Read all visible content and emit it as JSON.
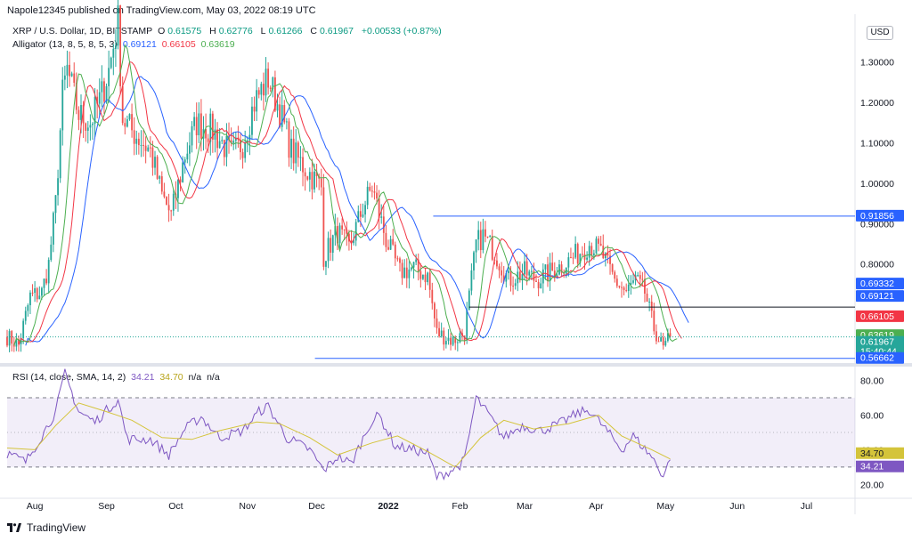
{
  "publisher_line": "Napole12345 published on TradingView.com, May 03, 2022 08:19 UTC",
  "legend": {
    "symbol": "XRP / U.S. Dollar, 1D, BITSTAMP",
    "o_label": "O",
    "o_value": "0.61575",
    "h_label": "H",
    "h_value": "0.62776",
    "l_label": "L",
    "l_value": "0.61266",
    "c_label": "C",
    "c_value": "0.61967",
    "change": "+0.00533 (+0.87%)",
    "alligator_label": "Alligator (13, 8, 5, 8, 5, 3)",
    "jaw": "0.69121",
    "teeth": "0.66105",
    "lips": "0.63619"
  },
  "rsi_legend": {
    "label": "RSI (14, close, SMA, 14, 2)",
    "rsi": "34.21",
    "sma": "34.70",
    "na1": "n/a",
    "na2": "n/a"
  },
  "currency": "USD",
  "brand": "TradingView",
  "colors": {
    "up": "#26a69a",
    "down": "#ef5350",
    "jaw": "#2962ff",
    "teeth": "#f23645",
    "lips": "#4caf50",
    "rsi": "#7e57c2",
    "rsi_ma": "#d4c43a",
    "hline": "#2962ff"
  },
  "chart_data": {
    "type": "candlestick",
    "x_ticks": [
      "Aug",
      "Sep",
      "Oct",
      "Nov",
      "Dec",
      "2022",
      "Feb",
      "Mar",
      "Apr",
      "May",
      "Jun",
      "Jul"
    ],
    "y_ticks": [
      "1.30000",
      "1.20000",
      "1.10000",
      "1.00000",
      "0.90000",
      "0.80000"
    ],
    "y_range": [
      0.555,
      1.405
    ],
    "close_path": [
      [
        "2021-07-20",
        0.62
      ],
      [
        "2021-07-25",
        0.6
      ],
      [
        "2021-07-30",
        0.72
      ],
      [
        "2021-08-04",
        0.73
      ],
      [
        "2021-08-07",
        0.8
      ],
      [
        "2021-08-10",
        0.95
      ],
      [
        "2021-08-13",
        1.22
      ],
      [
        "2021-08-15",
        1.28
      ],
      [
        "2021-08-20",
        1.17
      ],
      [
        "2021-08-25",
        1.15
      ],
      [
        "2021-08-30",
        1.22
      ],
      [
        "2021-09-02",
        1.28
      ],
      [
        "2021-09-06",
        1.4
      ],
      [
        "2021-09-08",
        1.16
      ],
      [
        "2021-09-12",
        1.13
      ],
      [
        "2021-09-20",
        1.08
      ],
      [
        "2021-09-25",
        0.97
      ],
      [
        "2021-09-29",
        0.92
      ],
      [
        "2021-10-05",
        1.07
      ],
      [
        "2021-10-10",
        1.15
      ],
      [
        "2021-10-17",
        1.13
      ],
      [
        "2021-10-25",
        1.07
      ],
      [
        "2021-10-30",
        1.1
      ],
      [
        "2021-11-04",
        1.2
      ],
      [
        "2021-11-10",
        1.26
      ],
      [
        "2021-11-15",
        1.18
      ],
      [
        "2021-11-20",
        1.08
      ],
      [
        "2021-11-27",
        1.03
      ],
      [
        "2021-12-03",
        0.99
      ],
      [
        "2021-12-04",
        0.82
      ],
      [
        "2021-12-10",
        0.88
      ],
      [
        "2021-12-15",
        0.84
      ],
      [
        "2021-12-21",
        0.94
      ],
      [
        "2021-12-25",
        0.99
      ],
      [
        "2021-12-31",
        0.86
      ],
      [
        "2022-01-06",
        0.78
      ],
      [
        "2022-01-12",
        0.79
      ],
      [
        "2022-01-18",
        0.77
      ],
      [
        "2022-01-22",
        0.63
      ],
      [
        "2022-01-29",
        0.61
      ],
      [
        "2022-02-03",
        0.63
      ],
      [
        "2022-02-08",
        0.85
      ],
      [
        "2022-02-11",
        0.87
      ],
      [
        "2022-02-16",
        0.83
      ],
      [
        "2022-02-22",
        0.76
      ],
      [
        "2022-03-01",
        0.78
      ],
      [
        "2022-03-06",
        0.76
      ],
      [
        "2022-03-12",
        0.78
      ],
      [
        "2022-03-18",
        0.8
      ],
      [
        "2022-03-25",
        0.83
      ],
      [
        "2022-03-29",
        0.85
      ],
      [
        "2022-04-03",
        0.83
      ],
      [
        "2022-04-09",
        0.76
      ],
      [
        "2022-04-14",
        0.73
      ],
      [
        "2022-04-18",
        0.76
      ],
      [
        "2022-04-22",
        0.73
      ],
      [
        "2022-04-26",
        0.64
      ],
      [
        "2022-04-30",
        0.59
      ],
      [
        "2022-05-03",
        0.61967
      ]
    ],
    "horizontal_lines": [
      0.91856,
      0.69332,
      0.56662
    ],
    "price_labels": [
      {
        "name": "resistance",
        "value": "0.91856"
      },
      {
        "name": "support-mid",
        "value": "0.69332"
      },
      {
        "name": "jaw",
        "value": "0.69121"
      },
      {
        "name": "teeth",
        "value": "0.66105"
      },
      {
        "name": "lips",
        "value": "0.63619"
      },
      {
        "name": "last",
        "value": "0.61967",
        "sub": "15:40:44"
      },
      {
        "name": "support-low",
        "value": "0.56662"
      }
    ],
    "rsi": {
      "y_ticks": [
        "80.00",
        "60.00",
        "40.00",
        "20.00"
      ],
      "y_range": [
        13,
        88
      ],
      "band": [
        70,
        30
      ],
      "mid": 50,
      "rsi_path": [
        [
          "2021-07-20",
          38
        ],
        [
          "2021-07-28",
          33
        ],
        [
          "2021-08-04",
          48
        ],
        [
          "2021-08-10",
          62
        ],
        [
          "2021-08-14",
          84
        ],
        [
          "2021-08-20",
          62
        ],
        [
          "2021-08-27",
          56
        ],
        [
          "2021-09-02",
          64
        ],
        [
          "2021-09-06",
          69
        ],
        [
          "2021-09-10",
          46
        ],
        [
          "2021-09-20",
          46
        ],
        [
          "2021-09-28",
          37
        ],
        [
          "2021-10-05",
          52
        ],
        [
          "2021-10-12",
          59
        ],
        [
          "2021-10-20",
          47
        ],
        [
          "2021-10-30",
          51
        ],
        [
          "2021-11-06",
          62
        ],
        [
          "2021-11-10",
          65
        ],
        [
          "2021-11-18",
          47
        ],
        [
          "2021-11-28",
          40
        ],
        [
          "2021-12-04",
          28
        ],
        [
          "2021-12-10",
          36
        ],
        [
          "2021-12-16",
          32
        ],
        [
          "2021-12-24",
          55
        ],
        [
          "2021-12-28",
          60
        ],
        [
          "2022-01-04",
          42
        ],
        [
          "2022-01-12",
          40
        ],
        [
          "2022-01-18",
          38
        ],
        [
          "2022-01-22",
          24
        ],
        [
          "2022-01-31",
          30
        ],
        [
          "2022-02-03",
          34
        ],
        [
          "2022-02-08",
          70
        ],
        [
          "2022-02-13",
          61
        ],
        [
          "2022-02-20",
          47
        ],
        [
          "2022-02-28",
          54
        ],
        [
          "2022-03-08",
          51
        ],
        [
          "2022-03-16",
          55
        ],
        [
          "2022-03-24",
          61
        ],
        [
          "2022-03-29",
          63
        ],
        [
          "2022-04-05",
          52
        ],
        [
          "2022-04-12",
          40
        ],
        [
          "2022-04-17",
          48
        ],
        [
          "2022-04-25",
          36
        ],
        [
          "2022-04-30",
          25
        ],
        [
          "2022-05-03",
          34.21
        ]
      ],
      "ma_path": [
        [
          "2021-07-20",
          41
        ],
        [
          "2021-08-01",
          40
        ],
        [
          "2021-08-10",
          54
        ],
        [
          "2021-08-20",
          67
        ],
        [
          "2021-09-01",
          62
        ],
        [
          "2021-09-12",
          57
        ],
        [
          "2021-09-25",
          47
        ],
        [
          "2021-10-08",
          46
        ],
        [
          "2021-10-20",
          51
        ],
        [
          "2021-11-05",
          56
        ],
        [
          "2021-11-15",
          55
        ],
        [
          "2021-11-28",
          47
        ],
        [
          "2021-12-10",
          37
        ],
        [
          "2021-12-25",
          44
        ],
        [
          "2022-01-05",
          48
        ],
        [
          "2022-01-18",
          39
        ],
        [
          "2022-01-30",
          30
        ],
        [
          "2022-02-10",
          47
        ],
        [
          "2022-02-20",
          57
        ],
        [
          "2022-03-05",
          52
        ],
        [
          "2022-03-20",
          55
        ],
        [
          "2022-04-02",
          60
        ],
        [
          "2022-04-12",
          48
        ],
        [
          "2022-04-25",
          40
        ],
        [
          "2022-05-03",
          34.7
        ]
      ],
      "labels": [
        {
          "name": "rsi-ma",
          "value": "34.70"
        },
        {
          "name": "rsi",
          "value": "34.21"
        }
      ]
    }
  }
}
